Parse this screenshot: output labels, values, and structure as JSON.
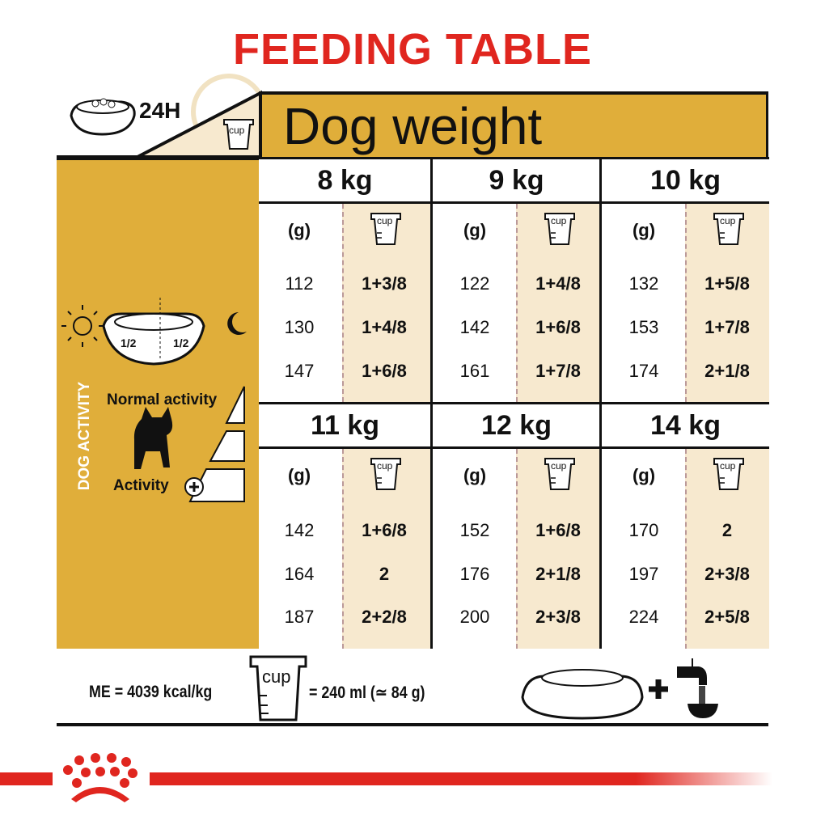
{
  "title": "FEEDING TABLE",
  "top_left": {
    "label": "24H"
  },
  "header": {
    "title": "Dog weight"
  },
  "cup_label": "cup",
  "grams_label": "(g)",
  "left_panel": {
    "half_left": "1/2",
    "half_right": "1/2",
    "normal_activity": "Normal activity",
    "activity": "Activity",
    "vertical_label": "DOG ACTIVITY"
  },
  "weights": [
    {
      "label": "8 kg",
      "rows": [
        [
          "112",
          "1+3/8"
        ],
        [
          "130",
          "1+4/8"
        ],
        [
          "147",
          "1+6/8"
        ]
      ]
    },
    {
      "label": "9 kg",
      "rows": [
        [
          "122",
          "1+4/8"
        ],
        [
          "142",
          "1+6/8"
        ],
        [
          "161",
          "1+7/8"
        ]
      ]
    },
    {
      "label": "10 kg",
      "rows": [
        [
          "132",
          "1+5/8"
        ],
        [
          "153",
          "1+7/8"
        ],
        [
          "174",
          "2+1/8"
        ]
      ]
    },
    {
      "label": "11 kg",
      "rows": [
        [
          "142",
          "1+6/8"
        ],
        [
          "164",
          "2"
        ],
        [
          "187",
          "2+2/8"
        ]
      ]
    },
    {
      "label": "12 kg",
      "rows": [
        [
          "152",
          "1+6/8"
        ],
        [
          "176",
          "2+1/8"
        ],
        [
          "200",
          "2+3/8"
        ]
      ]
    },
    {
      "label": "14 kg",
      "rows": [
        [
          "170",
          "2"
        ],
        [
          "197",
          "2+3/8"
        ],
        [
          "224",
          "2+5/8"
        ]
      ]
    }
  ],
  "footer": {
    "energy": "ME = 4039 kcal/kg",
    "cup_equiv": "= 240 ml (≃ 84 g)",
    "plus": "+"
  },
  "colors": {
    "gold": "#e0ae3a",
    "cream": "#f7e9cf",
    "red": "#e0261f"
  }
}
